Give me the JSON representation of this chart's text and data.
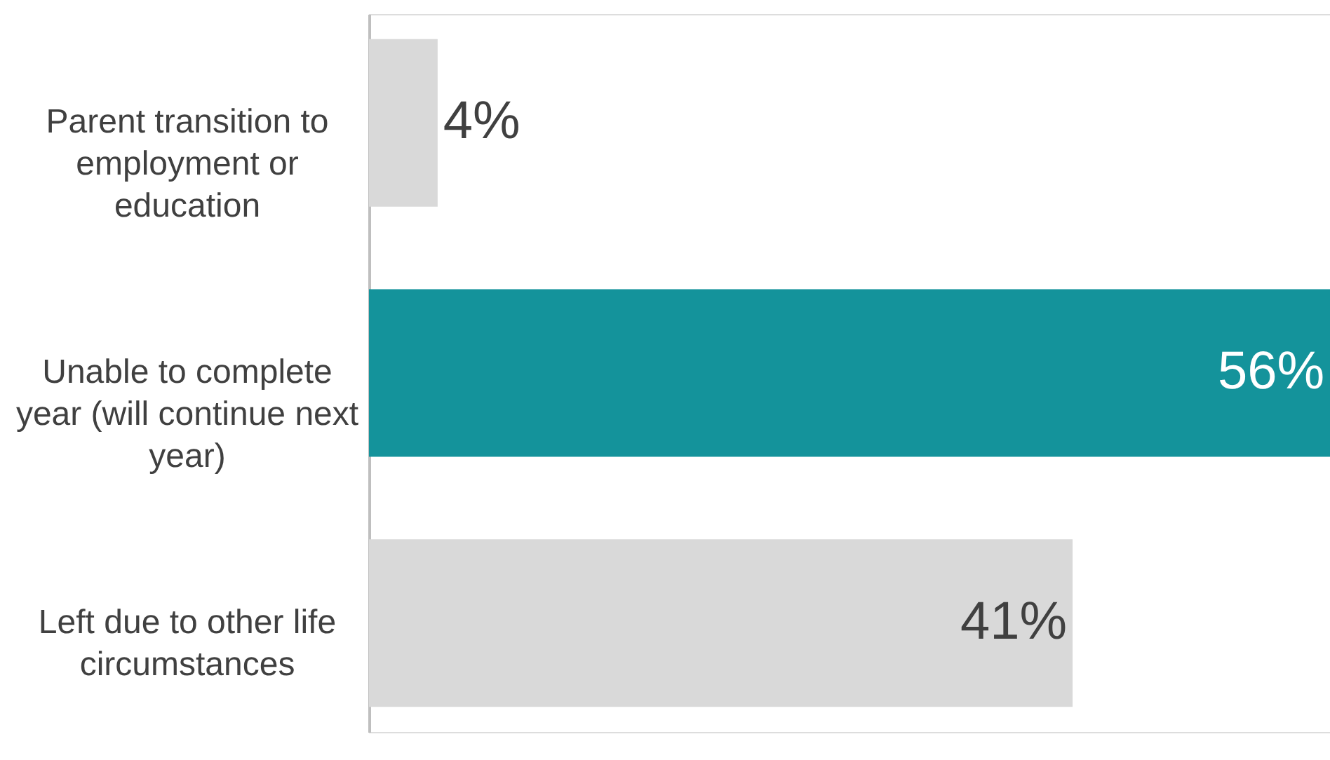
{
  "chart_data": {
    "type": "bar",
    "orientation": "horizontal",
    "categories": [
      "Parent transition to\nemployment or\neducation",
      "Unable to complete\nyear (will continue next\nyear)",
      "Left due to other life\ncircumstances"
    ],
    "values": [
      4,
      56,
      41
    ],
    "colors": [
      "#d9d9d9",
      "#14939b",
      "#d9d9d9"
    ],
    "value_labels": [
      "4%",
      "56%",
      "41%"
    ],
    "grid": false
  }
}
